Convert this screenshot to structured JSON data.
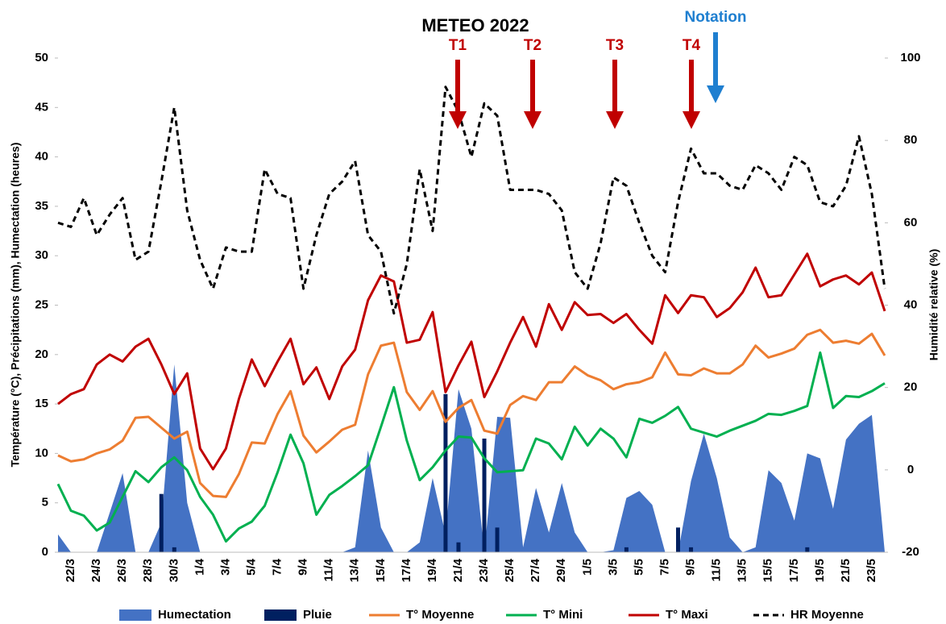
{
  "chart_data": {
    "type": "combo",
    "title": "METEO 2022",
    "y_label": "Température (°C), Précipitations (mm), Humectation (heures)",
    "y2_label": "Humidité relative (%)",
    "categories": [
      null,
      "22/3",
      null,
      "24/3",
      null,
      "26/3",
      null,
      "28/3",
      null,
      "30/3",
      null,
      "1/4",
      null,
      "3/4",
      null,
      "5/4",
      null,
      "7/4",
      null,
      "9/4",
      null,
      "11/4",
      null,
      "13/4",
      null,
      "15/4",
      null,
      "17/4",
      null,
      "19/4",
      null,
      "21/4",
      null,
      "23/4",
      null,
      "25/4",
      null,
      "27/4",
      null,
      "29/4",
      null,
      "1/5",
      null,
      "3/5",
      null,
      "5/5",
      null,
      "7/5",
      null,
      "9/5",
      null,
      "11/5",
      null,
      "13/5",
      null,
      "15/5",
      null,
      "17/5",
      null,
      "19/5",
      null,
      "21/5",
      null,
      "23/5",
      null
    ],
    "ylim": [
      0,
      50
    ],
    "yticks": [
      0,
      5,
      10,
      15,
      20,
      25,
      30,
      35,
      40,
      45,
      50
    ],
    "y2lim": [
      -20,
      100
    ],
    "y2ticks": [
      -20,
      0,
      20,
      40,
      60,
      80,
      100
    ],
    "grid": false,
    "legend": "bottom",
    "series": [
      {
        "name": "Humectation",
        "type": "area",
        "color": "#4472c4",
        "values": [
          1.8,
          0,
          0,
          0,
          4,
          8,
          0,
          0,
          3,
          19,
          5,
          0,
          0,
          0,
          0,
          0,
          0,
          0,
          0,
          0,
          0,
          0,
          0,
          0.5,
          10.3,
          2.5,
          0,
          0,
          1,
          7.5,
          1.8,
          16.5,
          12.5,
          0,
          13.7,
          13.6,
          0.5,
          6.5,
          2,
          7,
          2,
          0,
          0,
          0.2,
          5.5,
          6.2,
          4.8,
          0,
          0,
          7.2,
          12,
          7.5,
          1.5,
          0,
          0.5,
          8.3,
          7,
          3.2,
          10,
          9.5,
          4.4,
          11.4,
          13,
          13.9,
          0
        ]
      },
      {
        "name": "Pluie",
        "type": "bar",
        "color": "#002060",
        "values": [
          0,
          0,
          0,
          0,
          0,
          0,
          0,
          0,
          5.9,
          0.5,
          0,
          0,
          0,
          0,
          0,
          0,
          0,
          0,
          0,
          0,
          0,
          0,
          0,
          0,
          0,
          0,
          0,
          0,
          0,
          0,
          16,
          1,
          0,
          11.5,
          2.5,
          0,
          0,
          0,
          0,
          0,
          0,
          0,
          0,
          0,
          0.5,
          0,
          0,
          0,
          2.5,
          0.5,
          0,
          0,
          0,
          0,
          0,
          0,
          0,
          0,
          0.5,
          0,
          0,
          0,
          0,
          0,
          0
        ]
      },
      {
        "name": "T° Moyenne",
        "type": "line",
        "color": "#ed7d31",
        "values": [
          9.8,
          9.2,
          9.4,
          10,
          10.4,
          11.3,
          13.6,
          13.7,
          12.6,
          11.5,
          12.2,
          7,
          5.7,
          5.6,
          7.9,
          11.1,
          11,
          14,
          16.3,
          11.8,
          10.1,
          11.2,
          12.4,
          12.9,
          18,
          20.9,
          21.2,
          16.2,
          14.4,
          16.3,
          13.2,
          14.6,
          15.4,
          12.3,
          12,
          14.9,
          15.8,
          15.4,
          17.2,
          17.2,
          18.8,
          17.9,
          17.4,
          16.5,
          17,
          17.2,
          17.7,
          20.2,
          18,
          17.9,
          18.6,
          18.1,
          18.1,
          19,
          20.9,
          19.7,
          20.1,
          20.6,
          22,
          22.5,
          21.2,
          21.4,
          21.1,
          22.1,
          19.9
        ]
      },
      {
        "name": "T° Mini",
        "type": "line",
        "color": "#00b050",
        "values": [
          6.9,
          4.2,
          3.7,
          2.2,
          3,
          5.6,
          8.2,
          7.1,
          8.6,
          9.6,
          8.3,
          5.6,
          3.8,
          1.1,
          2.4,
          3.1,
          4.7,
          8.1,
          11.9,
          9,
          3.8,
          5.8,
          6.7,
          7.7,
          8.8,
          12.7,
          16.7,
          11.3,
          7.3,
          8.6,
          10.3,
          11.7,
          11.6,
          9.5,
          8.1,
          8.2,
          8.3,
          11.5,
          11,
          9.4,
          12.7,
          10.8,
          12.5,
          11.5,
          9.6,
          13.5,
          13.1,
          13.8,
          14.7,
          12.5,
          12.1,
          11.7,
          12.3,
          12.8,
          13.3,
          14,
          13.9,
          14.3,
          14.8,
          20.2,
          14.6,
          15.8,
          15.7,
          16.3,
          17.1
        ]
      },
      {
        "name": "T° Maxi",
        "type": "line",
        "color": "#c00000",
        "values": [
          15,
          16,
          16.5,
          19,
          20,
          19.3,
          20.8,
          21.6,
          19,
          16,
          18.1,
          10.5,
          8.4,
          10.5,
          15.5,
          19.5,
          16.8,
          19.3,
          21.6,
          17,
          18.7,
          15.5,
          18.8,
          20.5,
          25.5,
          28,
          27.4,
          21.2,
          21.5,
          24.3,
          16.2,
          18.9,
          21.3,
          15.7,
          18.3,
          21.2,
          23.8,
          20.8,
          25.1,
          22.5,
          25.3,
          24,
          24.1,
          23.2,
          24.1,
          22.5,
          21.1,
          26,
          24.2,
          26,
          25.8,
          23.8,
          24.7,
          26.3,
          28.8,
          25.8,
          26,
          28.1,
          30.2,
          26.9,
          27.6,
          28,
          27.1,
          28.3,
          24.4
        ]
      },
      {
        "name": "HR Moyenne",
        "type": "line",
        "axis": "y2",
        "color": "#000000",
        "line_style": "dashed",
        "values": [
          60,
          59,
          66,
          57,
          62,
          66,
          51,
          53,
          70,
          88,
          63,
          51,
          44,
          54,
          53,
          53,
          73,
          67,
          66,
          44,
          57,
          67,
          70,
          75,
          57,
          53,
          38,
          50,
          73,
          58,
          93,
          87,
          76,
          89,
          86,
          68,
          68,
          68,
          67,
          63,
          48,
          44,
          55,
          71,
          69,
          60,
          52,
          48,
          65,
          78,
          72,
          72,
          69,
          68,
          74,
          72,
          68,
          76,
          74,
          65,
          64,
          69,
          81,
          67,
          44
        ]
      }
    ],
    "annotations": [
      {
        "text": "T1",
        "color": "#c00000"
      },
      {
        "text": "T2",
        "color": "#c00000"
      },
      {
        "text": "T3",
        "color": "#c00000"
      },
      {
        "text": "T4",
        "color": "#c00000"
      },
      {
        "text": "Notation",
        "color": "#1f7fd0"
      }
    ]
  }
}
